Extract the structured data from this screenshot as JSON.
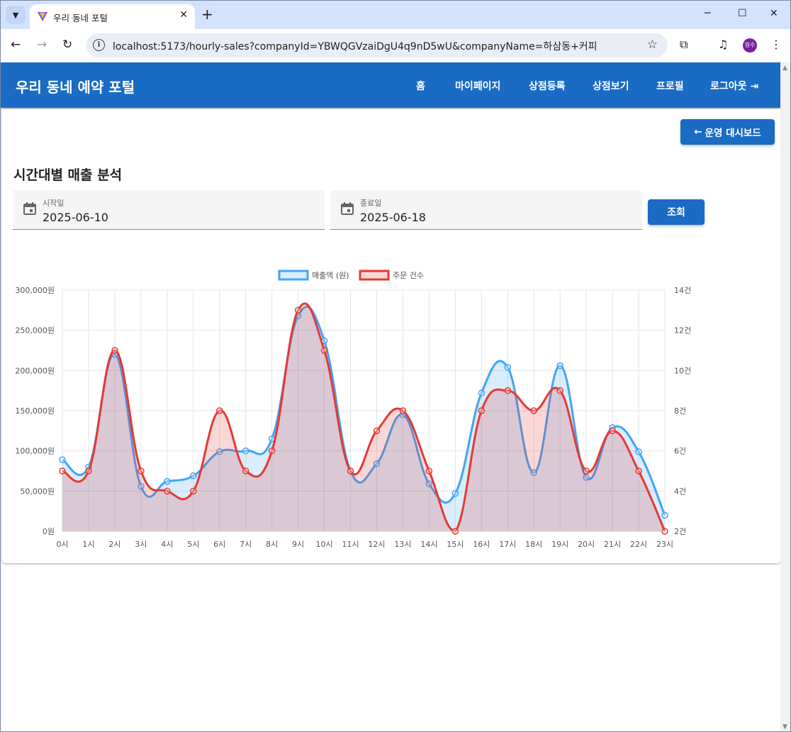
{
  "browser": {
    "tab_title": "우리 동네 포털",
    "url": "localhost:5173/hourly-sales?companyId=YBWQGVzaiDgU4q9nD5wU&companyName=하삼동+커피",
    "profile_initials": "원수"
  },
  "app": {
    "brand": "우리 동네 예약 포털",
    "nav": {
      "home": "홈",
      "mypage": "마이페이지",
      "register_store": "상점등록",
      "view_store": "상점보기",
      "profile": "프로필",
      "logout": "로그아웃"
    },
    "back_button": "운영 대시보드",
    "page_title": "시간대별 매출 분석",
    "start_field": {
      "label": "시작일",
      "value": "2025-06-10"
    },
    "end_field": {
      "label": "종료일",
      "value": "2025-06-18"
    },
    "query_button": "조회"
  },
  "colors": {
    "primary": "#1a6bc4",
    "sales": "#42a5f5",
    "orders": "#e53935"
  },
  "chart_data": {
    "type": "line",
    "categories": [
      "0시",
      "1시",
      "2시",
      "3시",
      "4시",
      "5시",
      "6시",
      "7시",
      "8시",
      "9시",
      "10시",
      "11시",
      "12시",
      "13시",
      "14시",
      "15시",
      "16시",
      "17시",
      "18시",
      "19시",
      "20시",
      "21시",
      "22시",
      "23시"
    ],
    "series": [
      {
        "name": "매출액 (원)",
        "axis": "left",
        "values": [
          89000,
          80000,
          220000,
          56000,
          62000,
          69000,
          99000,
          100000,
          115000,
          268000,
          237000,
          75000,
          84000,
          145000,
          59000,
          47000,
          172000,
          204000,
          73000,
          206000,
          67000,
          129000,
          99000,
          20000
        ]
      },
      {
        "name": "주문 건수",
        "axis": "right",
        "values": [
          5,
          5,
          11,
          5,
          4,
          4,
          8,
          5,
          6,
          13,
          11,
          5,
          7,
          8,
          5,
          2,
          8,
          9,
          8,
          9,
          5,
          7,
          5,
          2
        ]
      }
    ],
    "y_left": {
      "min": 0,
      "max": 300000,
      "ticks": [
        "300,000원",
        "250,000원",
        "200,000원",
        "150,000원",
        "100,000원",
        "50,000원",
        "0원"
      ]
    },
    "y_right": {
      "min": 2,
      "max": 14,
      "ticks": [
        "14건",
        "12건",
        "10건",
        "8건",
        "6건",
        "4건",
        "2건"
      ]
    },
    "grid": true,
    "legend_position": "top"
  }
}
